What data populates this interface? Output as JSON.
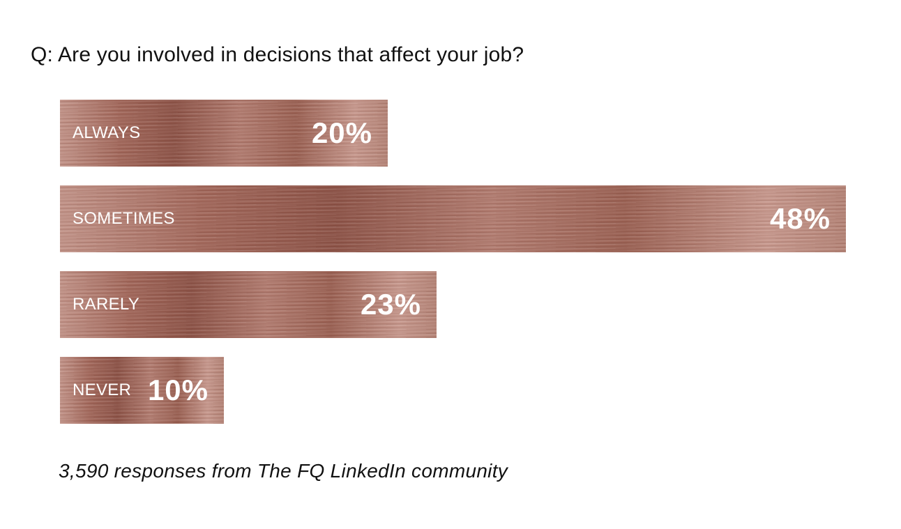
{
  "chart_data": {
    "type": "bar",
    "orientation": "horizontal",
    "title": "Q: Are you involved in decisions that affect your job?",
    "categories": [
      "ALWAYS",
      "SOMETIMES",
      "RARELY",
      "NEVER"
    ],
    "values": [
      20,
      48,
      23,
      10
    ],
    "value_labels": [
      "20%",
      "48%",
      "23%",
      "10%"
    ],
    "unit": "%",
    "xlim": [
      0,
      48
    ],
    "grid": false,
    "footnote": "3,590 responses from The FQ LinkedIn community",
    "colors": {
      "bar": "#a86e61",
      "label_text": "#ffffff"
    }
  }
}
